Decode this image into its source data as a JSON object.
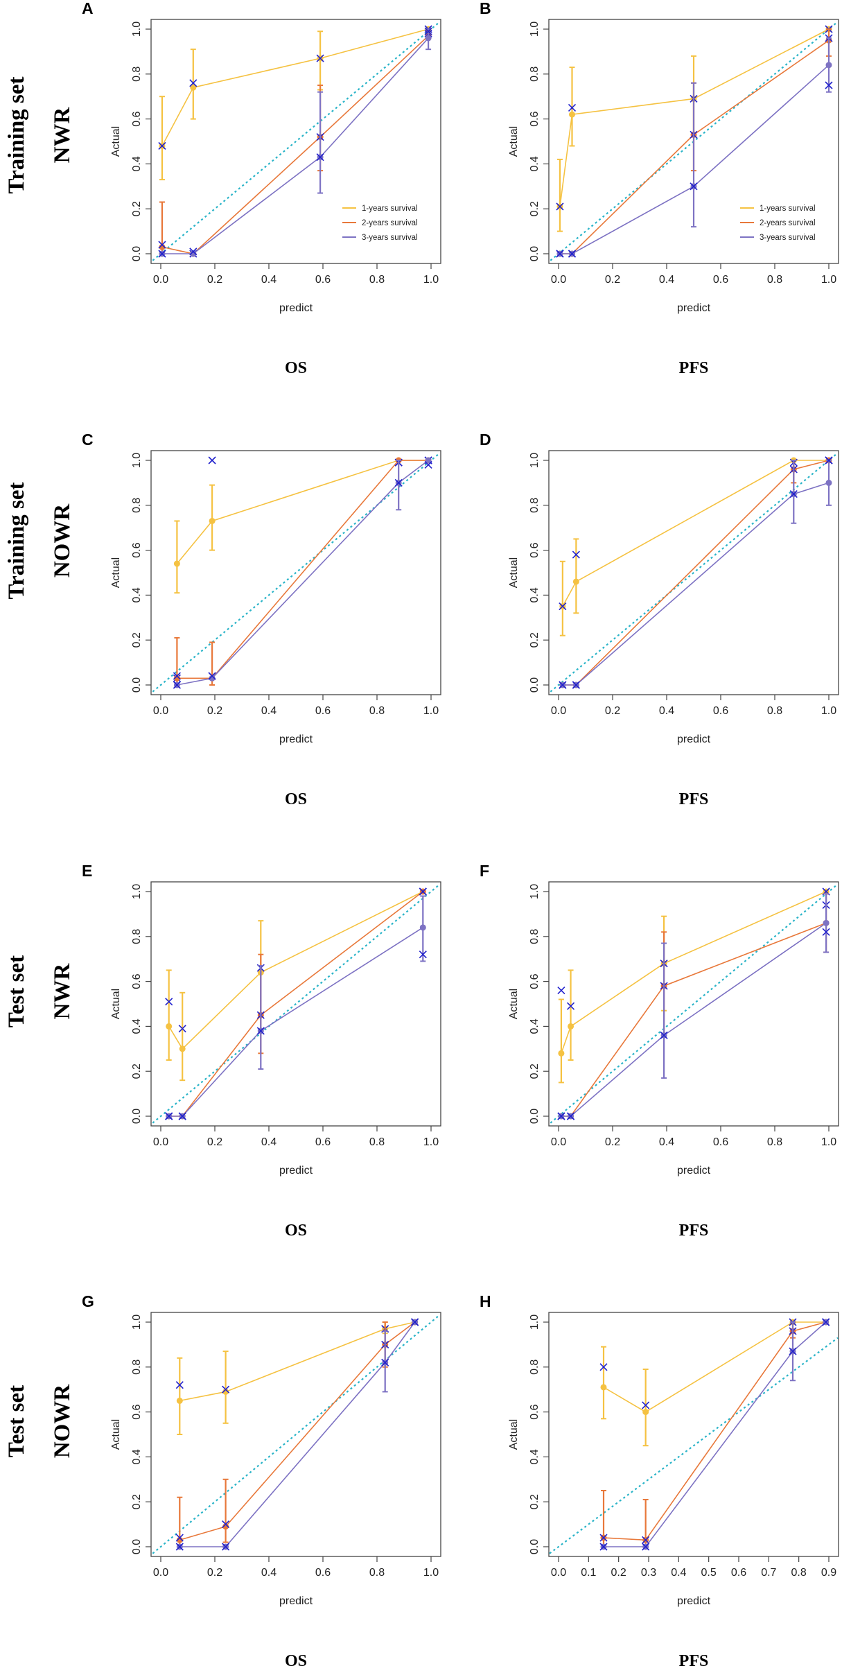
{
  "colors": {
    "y1": "#f5c242",
    "y2": "#e8783a",
    "y3": "#7d72c3",
    "ideal": "#2ab4c8",
    "cross": "#2222cc",
    "axis": "#444444"
  },
  "legend": [
    "1-years survival",
    "2-years survival",
    "3-years survival"
  ],
  "row_labels": [
    {
      "set": "Training set",
      "model": "NWR"
    },
    {
      "set": "Training set",
      "model": "NOWR"
    },
    {
      "set": "Test set",
      "model": "NWR"
    },
    {
      "set": "Test set",
      "model": "NOWR"
    }
  ],
  "chart_data": [
    {
      "panel": "A",
      "type": "line",
      "caption": "OS",
      "xlabel": "predict",
      "ylabel": "Actual",
      "xlim": [
        0,
        1
      ],
      "ylim": [
        0,
        1
      ],
      "xticks": [
        "0.0",
        "0.2",
        "0.4",
        "0.6",
        "0.8",
        "1.0"
      ],
      "yticks": [
        "0.0",
        "0.2",
        "0.4",
        "0.6",
        "0.8",
        "1.0"
      ],
      "legend": true,
      "series": [
        {
          "name": "1-years survival",
          "color": "y1",
          "x": [
            0.005,
            0.12,
            0.59,
            0.99
          ],
          "y": [
            0.48,
            0.74,
            0.87,
            1.0
          ],
          "err_lo": [
            0.33,
            0.6,
            0.73,
            1.0
          ],
          "err_hi": [
            0.7,
            0.91,
            0.99,
            1.0
          ],
          "cross_y": [
            0.48,
            0.76,
            0.87,
            1.0
          ]
        },
        {
          "name": "2-years survival",
          "color": "y2",
          "x": [
            0.005,
            0.12,
            0.59,
            0.99
          ],
          "y": [
            0.03,
            0.0,
            0.52,
            0.97
          ],
          "err_lo": [
            0.0,
            0.0,
            0.37,
            0.96
          ],
          "err_hi": [
            0.23,
            0.0,
            0.75,
            0.99
          ],
          "cross_y": [
            0.04,
            0.0,
            0.52,
            0.98
          ]
        },
        {
          "name": "3-years survival",
          "color": "y3",
          "x": [
            0.005,
            0.12,
            0.59,
            0.99
          ],
          "y": [
            0.0,
            0.0,
            0.43,
            0.96
          ],
          "err_lo": [
            0.0,
            0.0,
            0.27,
            0.91
          ],
          "err_hi": [
            0.0,
            0.0,
            0.72,
            1.0
          ],
          "cross_y": [
            0.0,
            0.01,
            0.43,
            0.99
          ]
        }
      ]
    },
    {
      "panel": "B",
      "type": "line",
      "caption": "PFS",
      "xlabel": "predict",
      "ylabel": "Actual",
      "xlim": [
        0,
        1
      ],
      "ylim": [
        0,
        1
      ],
      "xticks": [
        "0.0",
        "0.2",
        "0.4",
        "0.6",
        "0.8",
        "1.0"
      ],
      "yticks": [
        "0.0",
        "0.2",
        "0.4",
        "0.6",
        "0.8",
        "1.0"
      ],
      "legend": true,
      "series": [
        {
          "name": "1-years survival",
          "color": "y1",
          "x": [
            0.005,
            0.05,
            0.5,
            1.0
          ],
          "y": [
            0.21,
            0.62,
            0.69,
            1.0
          ],
          "err_lo": [
            0.1,
            0.48,
            0.52,
            1.0
          ],
          "err_hi": [
            0.42,
            0.83,
            0.88,
            1.0
          ],
          "cross_y": [
            0.21,
            0.65,
            0.69,
            1.0
          ]
        },
        {
          "name": "2-years survival",
          "color": "y2",
          "x": [
            0.005,
            0.05,
            0.5,
            1.0
          ],
          "y": [
            0.0,
            0.0,
            0.53,
            0.95
          ],
          "err_lo": [
            0.0,
            0.0,
            0.37,
            0.88
          ],
          "err_hi": [
            0.0,
            0.0,
            0.76,
            1.0
          ],
          "cross_y": [
            0.0,
            0.0,
            0.53,
            0.96
          ]
        },
        {
          "name": "3-years survival",
          "color": "y3",
          "x": [
            0.005,
            0.05,
            0.5,
            1.0
          ],
          "y": [
            0.0,
            0.0,
            0.3,
            0.84
          ],
          "err_lo": [
            0.0,
            0.0,
            0.12,
            0.72
          ],
          "err_hi": [
            0.0,
            0.0,
            0.76,
            0.96
          ],
          "cross_y": [
            0.0,
            0.0,
            0.3,
            0.75
          ]
        }
      ]
    },
    {
      "panel": "C",
      "type": "line",
      "caption": "OS",
      "xlabel": "predict",
      "ylabel": "Actual",
      "xlim": [
        0,
        1
      ],
      "ylim": [
        0,
        1
      ],
      "xticks": [
        "0.0",
        "0.2",
        "0.4",
        "0.6",
        "0.8",
        "1.0"
      ],
      "yticks": [
        "0.0",
        "0.2",
        "0.4",
        "0.6",
        "0.8",
        "1.0"
      ],
      "legend": false,
      "series": [
        {
          "name": "1-years survival",
          "color": "y1",
          "x": [
            0.06,
            0.19,
            0.88,
            0.99
          ],
          "y": [
            0.54,
            0.73,
            1.0,
            1.0
          ],
          "err_lo": [
            0.41,
            0.6,
            1.0,
            1.0
          ],
          "err_hi": [
            0.73,
            0.89,
            1.0,
            1.0
          ],
          "cross_y": [
            0.03,
            1.0,
            0.99,
            1.0
          ]
        },
        {
          "name": "2-years survival",
          "color": "y2",
          "x": [
            0.06,
            0.19,
            0.88,
            0.99
          ],
          "y": [
            0.03,
            0.03,
            1.0,
            1.0
          ],
          "err_lo": [
            0.0,
            0.0,
            1.0,
            1.0
          ],
          "err_hi": [
            0.21,
            0.19,
            1.0,
            1.0
          ],
          "cross_y": [
            0.04,
            0.04,
            0.99,
            1.0
          ]
        },
        {
          "name": "3-years survival",
          "color": "y3",
          "x": [
            0.06,
            0.19,
            0.88,
            0.99
          ],
          "y": [
            0.0,
            0.03,
            0.9,
            1.0
          ],
          "err_lo": [
            0.0,
            0.0,
            0.78,
            1.0
          ],
          "err_hi": [
            0.0,
            0.0,
            1.0,
            1.0
          ],
          "cross_y": [
            0.0,
            0.04,
            0.9,
            0.98
          ]
        }
      ]
    },
    {
      "panel": "D",
      "type": "line",
      "caption": "PFS",
      "xlabel": "predict",
      "ylabel": "Actual",
      "xlim": [
        0,
        1
      ],
      "ylim": [
        0,
        1
      ],
      "xticks": [
        "0.0",
        "0.2",
        "0.4",
        "0.6",
        "0.8",
        "1.0"
      ],
      "yticks": [
        "0.0",
        "0.2",
        "0.4",
        "0.6",
        "0.8",
        "1.0"
      ],
      "legend": false,
      "series": [
        {
          "name": "1-years survival",
          "color": "y1",
          "x": [
            0.015,
            0.065,
            0.87,
            1.0
          ],
          "y": [
            0.35,
            0.46,
            1.0,
            1.0
          ],
          "err_lo": [
            0.22,
            0.32,
            1.0,
            1.0
          ],
          "err_hi": [
            0.55,
            0.65,
            1.0,
            1.0
          ],
          "cross_y": [
            0.35,
            0.58,
            0.99,
            1.0
          ]
        },
        {
          "name": "2-years survival",
          "color": "y2",
          "x": [
            0.015,
            0.065,
            0.87,
            1.0
          ],
          "y": [
            0.0,
            0.0,
            0.96,
            1.0
          ],
          "err_lo": [
            0.0,
            0.0,
            0.9,
            1.0
          ],
          "err_hi": [
            0.0,
            0.0,
            1.0,
            1.0
          ],
          "cross_y": [
            0.0,
            0.0,
            0.96,
            1.0
          ]
        },
        {
          "name": "3-years survival",
          "color": "y3",
          "x": [
            0.015,
            0.065,
            0.87,
            1.0
          ],
          "y": [
            0.0,
            0.0,
            0.85,
            0.9
          ],
          "err_lo": [
            0.0,
            0.0,
            0.72,
            0.8
          ],
          "err_hi": [
            0.0,
            0.0,
            1.0,
            1.0
          ],
          "cross_y": [
            0.0,
            0.0,
            0.85,
            1.0
          ]
        }
      ]
    },
    {
      "panel": "E",
      "type": "line",
      "caption": "OS",
      "xlabel": "predict",
      "ylabel": "Actual",
      "xlim": [
        0,
        1
      ],
      "ylim": [
        0,
        1
      ],
      "xticks": [
        "0.0",
        "0.2",
        "0.4",
        "0.6",
        "0.8",
        "1.0"
      ],
      "yticks": [
        "0.0",
        "0.2",
        "0.4",
        "0.6",
        "0.8",
        "1.0"
      ],
      "legend": false,
      "series": [
        {
          "name": "1-years survival",
          "color": "y1",
          "x": [
            0.03,
            0.08,
            0.37,
            0.97
          ],
          "y": [
            0.4,
            0.3,
            0.64,
            1.0
          ],
          "err_lo": [
            0.25,
            0.16,
            0.45,
            1.0
          ],
          "err_hi": [
            0.65,
            0.55,
            0.87,
            1.0
          ],
          "cross_y": [
            0.51,
            0.39,
            0.66,
            1.0
          ]
        },
        {
          "name": "2-years survival",
          "color": "y2",
          "x": [
            0.03,
            0.08,
            0.37,
            0.97
          ],
          "y": [
            0.0,
            0.0,
            0.45,
            1.0
          ],
          "err_lo": [
            0.0,
            0.0,
            0.28,
            1.0
          ],
          "err_hi": [
            0.0,
            0.0,
            0.72,
            1.0
          ],
          "cross_y": [
            0.0,
            0.0,
            0.45,
            1.0
          ]
        },
        {
          "name": "3-years survival",
          "color": "y3",
          "x": [
            0.03,
            0.08,
            0.37,
            0.97
          ],
          "y": [
            0.0,
            0.0,
            0.38,
            0.84
          ],
          "err_lo": [
            0.0,
            0.0,
            0.21,
            0.69
          ],
          "err_hi": [
            0.0,
            0.0,
            0.67,
            0.98
          ],
          "cross_y": [
            0.0,
            0.0,
            0.38,
            0.72
          ]
        }
      ]
    },
    {
      "panel": "F",
      "type": "line",
      "caption": "PFS",
      "xlabel": "predict",
      "ylabel": "Actual",
      "xlim": [
        0,
        1
      ],
      "ylim": [
        0,
        1
      ],
      "xticks": [
        "0.0",
        "0.2",
        "0.4",
        "0.6",
        "0.8",
        "1.0"
      ],
      "yticks": [
        "0.0",
        "0.2",
        "0.4",
        "0.6",
        "0.8",
        "1.0"
      ],
      "legend": false,
      "series": [
        {
          "name": "1-years survival",
          "color": "y1",
          "x": [
            0.01,
            0.045,
            0.39,
            0.99
          ],
          "y": [
            0.28,
            0.4,
            0.68,
            1.0
          ],
          "err_lo": [
            0.15,
            0.25,
            0.47,
            1.0
          ],
          "err_hi": [
            0.52,
            0.65,
            0.89,
            1.0
          ],
          "cross_y": [
            0.56,
            0.49,
            0.68,
            1.0
          ]
        },
        {
          "name": "2-years survival",
          "color": "y2",
          "x": [
            0.01,
            0.045,
            0.39,
            0.99
          ],
          "y": [
            0.0,
            0.0,
            0.58,
            0.86
          ],
          "err_lo": [
            0.0,
            0.0,
            0.36,
            0.73
          ],
          "err_hi": [
            0.0,
            0.0,
            0.82,
            0.99
          ],
          "cross_y": [
            0.0,
            0.0,
            0.58,
            0.94
          ]
        },
        {
          "name": "3-years survival",
          "color": "y3",
          "x": [
            0.01,
            0.045,
            0.39,
            0.99
          ],
          "y": [
            0.0,
            0.0,
            0.36,
            0.86
          ],
          "err_lo": [
            0.0,
            0.0,
            0.17,
            0.73
          ],
          "err_hi": [
            0.0,
            0.0,
            0.77,
            0.99
          ],
          "cross_y": [
            0.0,
            0.0,
            0.36,
            0.82
          ]
        }
      ]
    },
    {
      "panel": "G",
      "type": "line",
      "caption": "OS",
      "xlabel": "predict",
      "ylabel": "Actual",
      "xlim": [
        0,
        1
      ],
      "ylim": [
        0,
        1
      ],
      "xticks": [
        "0.0",
        "0.2",
        "0.4",
        "0.6",
        "0.8",
        "1.0"
      ],
      "yticks": [
        "0.0",
        "0.2",
        "0.4",
        "0.6",
        "0.8",
        "1.0"
      ],
      "legend": false,
      "series": [
        {
          "name": "1-years survival",
          "color": "y1",
          "x": [
            0.07,
            0.24,
            0.83,
            0.94
          ],
          "y": [
            0.65,
            0.69,
            0.97,
            1.0
          ],
          "err_lo": [
            0.5,
            0.55,
            0.95,
            1.0
          ],
          "err_hi": [
            0.84,
            0.87,
            1.0,
            1.0
          ],
          "cross_y": [
            0.72,
            0.7,
            0.97,
            1.0
          ]
        },
        {
          "name": "2-years survival",
          "color": "y2",
          "x": [
            0.07,
            0.24,
            0.83,
            0.94
          ],
          "y": [
            0.03,
            0.09,
            0.9,
            1.0
          ],
          "err_lo": [
            0.0,
            0.02,
            0.8,
            1.0
          ],
          "err_hi": [
            0.22,
            0.3,
            1.0,
            1.0
          ],
          "cross_y": [
            0.04,
            0.1,
            0.9,
            1.0
          ]
        },
        {
          "name": "3-years survival",
          "color": "y3",
          "x": [
            0.07,
            0.24,
            0.83,
            0.94
          ],
          "y": [
            0.0,
            0.0,
            0.82,
            1.0
          ],
          "err_lo": [
            0.0,
            0.0,
            0.69,
            1.0
          ],
          "err_hi": [
            0.0,
            0.0,
            0.96,
            1.0
          ],
          "cross_y": [
            0.0,
            0.0,
            0.82,
            1.0
          ]
        }
      ]
    },
    {
      "panel": "H",
      "type": "line",
      "caption": "PFS",
      "xlabel": "predict",
      "ylabel": "Actual",
      "xlim": [
        0,
        0.9
      ],
      "ylim": [
        0,
        1
      ],
      "xticks": [
        "0.0",
        "0.1",
        "0.2",
        "0.3",
        "0.4",
        "0.5",
        "0.6",
        "0.7",
        "0.8",
        "0.9"
      ],
      "yticks": [
        "0.0",
        "0.2",
        "0.4",
        "0.6",
        "0.8",
        "1.0"
      ],
      "legend": false,
      "series": [
        {
          "name": "1-years survival",
          "color": "y1",
          "x": [
            0.15,
            0.29,
            0.78,
            0.89
          ],
          "y": [
            0.71,
            0.6,
            1.0,
            1.0
          ],
          "err_lo": [
            0.57,
            0.45,
            1.0,
            1.0
          ],
          "err_hi": [
            0.89,
            0.79,
            1.0,
            1.0
          ],
          "cross_y": [
            0.8,
            0.63,
            1.0,
            1.0
          ]
        },
        {
          "name": "2-years survival",
          "color": "y2",
          "x": [
            0.15,
            0.29,
            0.78,
            0.89
          ],
          "y": [
            0.04,
            0.03,
            0.96,
            1.0
          ],
          "err_lo": [
            0.0,
            0.0,
            0.93,
            1.0
          ],
          "err_hi": [
            0.25,
            0.21,
            1.0,
            1.0
          ],
          "cross_y": [
            0.04,
            0.03,
            0.96,
            1.0
          ]
        },
        {
          "name": "3-years survival",
          "color": "y3",
          "x": [
            0.15,
            0.29,
            0.78,
            0.89
          ],
          "y": [
            0.0,
            0.0,
            0.87,
            1.0
          ],
          "err_lo": [
            0.0,
            0.0,
            0.74,
            1.0
          ],
          "err_hi": [
            0.0,
            0.0,
            1.0,
            1.0
          ],
          "cross_y": [
            0.0,
            0.0,
            0.87,
            1.0
          ]
        }
      ]
    }
  ]
}
